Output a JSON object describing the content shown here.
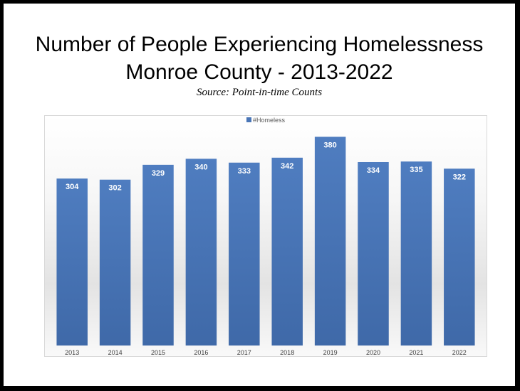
{
  "chart_data": {
    "type": "bar",
    "title": "Number of People Experiencing Homelessness",
    "title_line2": "Monroe County - 2013-2022",
    "subtitle": "Source: Point-in-time Counts",
    "xlabel": "",
    "ylabel": "",
    "categories": [
      "2013",
      "2014",
      "2015",
      "2016",
      "2017",
      "2018",
      "2019",
      "2020",
      "2021",
      "2022"
    ],
    "series": [
      {
        "name": "#Homeless",
        "values": [
          304,
          302,
          329,
          340,
          333,
          342,
          380,
          334,
          335,
          322
        ],
        "color": "#4a76b7"
      }
    ],
    "ylim": [
      0,
      400
    ],
    "grid": false,
    "legend_position": "top-center",
    "data_labels": true
  }
}
